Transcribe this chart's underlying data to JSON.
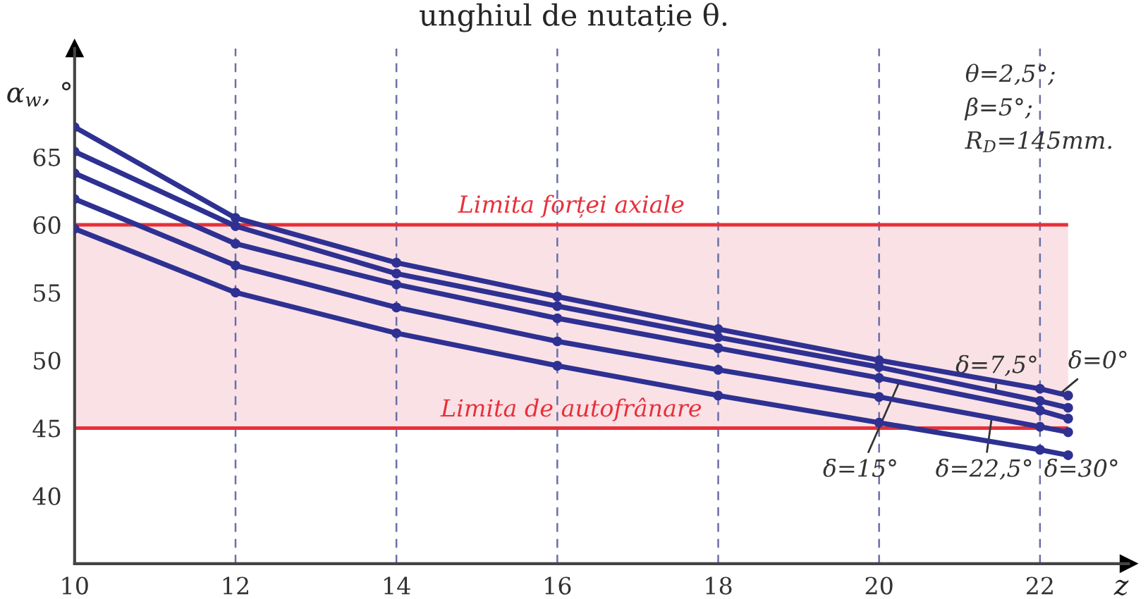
{
  "chart_data": {
    "type": "line",
    "title": "unghiul de nutație θ.",
    "xlabel": "z",
    "ylabel": "α$_{w}$, °",
    "x": [
      10,
      12,
      14,
      16,
      18,
      20,
      22,
      22.35
    ],
    "series": [
      {
        "name": "δ=0°",
        "color": "#2e3192",
        "values": [
          67.2,
          60.5,
          57.2,
          54.7,
          52.3,
          50.0,
          47.9,
          47.4
        ]
      },
      {
        "name": "δ=7,5°",
        "color": "#2e3192",
        "values": [
          65.4,
          59.9,
          56.4,
          54.0,
          51.7,
          49.5,
          47.0,
          46.5
        ]
      },
      {
        "name": "δ=15°",
        "color": "#2e3192",
        "values": [
          63.8,
          58.6,
          55.6,
          53.1,
          50.9,
          48.7,
          46.3,
          45.7
        ]
      },
      {
        "name": "δ=22,5°",
        "color": "#2e3192",
        "values": [
          61.9,
          57.0,
          53.9,
          51.4,
          49.3,
          47.3,
          45.1,
          44.7
        ]
      },
      {
        "name": "δ=30°",
        "color": "#2e3192",
        "values": [
          59.7,
          55.0,
          52.0,
          49.6,
          47.4,
          45.4,
          43.4,
          43.0
        ]
      }
    ],
    "xlim": [
      10,
      23.1
    ],
    "ylim": [
      35,
      73
    ],
    "xticks": [
      10,
      12,
      14,
      16,
      18,
      20,
      22
    ],
    "yticks": [
      40,
      45,
      50,
      55,
      60,
      65
    ],
    "bands": [
      {
        "axis": "y",
        "from": 45,
        "to": 60,
        "color": "#f9e1e6"
      }
    ],
    "ref_lines": [
      {
        "axis": "y",
        "value": 60,
        "label": "Limita forței axiale",
        "color": "#e8303a"
      },
      {
        "axis": "y",
        "value": 45,
        "label": "Limita de autofrânare",
        "color": "#e8303a"
      }
    ],
    "annotations": [
      "θ=2,5°;",
      "β=5°;",
      "R$_{D}$=145mm."
    ],
    "grid": "x",
    "marker": "circle",
    "line_style": "solid",
    "legend": false
  }
}
